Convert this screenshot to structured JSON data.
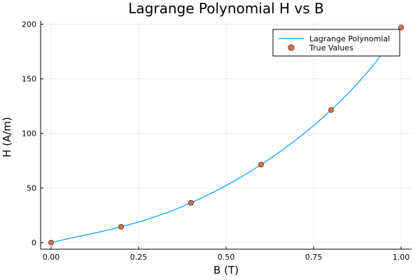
{
  "chart_data": {
    "type": "line",
    "title": "Lagrange Polynomial H vs B",
    "xlabel": "B (T)",
    "ylabel": "H (A/m)",
    "xlim": [
      -0.03,
      1.03
    ],
    "ylim": [
      -6,
      203
    ],
    "xticks": [
      0.0,
      0.25,
      0.5,
      0.75,
      1.0
    ],
    "xtick_labels": [
      "0.00",
      "0.25",
      "0.50",
      "0.75",
      "1.00"
    ],
    "yticks": [
      0,
      50,
      100,
      150,
      200
    ],
    "ytick_labels": [
      "0",
      "50",
      "100",
      "150",
      "200"
    ],
    "grid": true,
    "legend_position": "top-right",
    "series": [
      {
        "name": "Lagrange Polynomial",
        "kind": "line",
        "color": "#009af9",
        "x": [
          0.0,
          0.2,
          0.4,
          0.6,
          0.8,
          1.0
        ],
        "y": [
          0,
          14.5,
          36.5,
          71.5,
          121.5,
          197
        ]
      },
      {
        "name": "True Values",
        "kind": "scatter",
        "color": "#e26f46",
        "x": [
          0.0,
          0.2,
          0.4,
          0.6,
          0.8,
          1.0
        ],
        "y": [
          0,
          14.5,
          36.5,
          71.5,
          121.5,
          197
        ]
      }
    ]
  }
}
